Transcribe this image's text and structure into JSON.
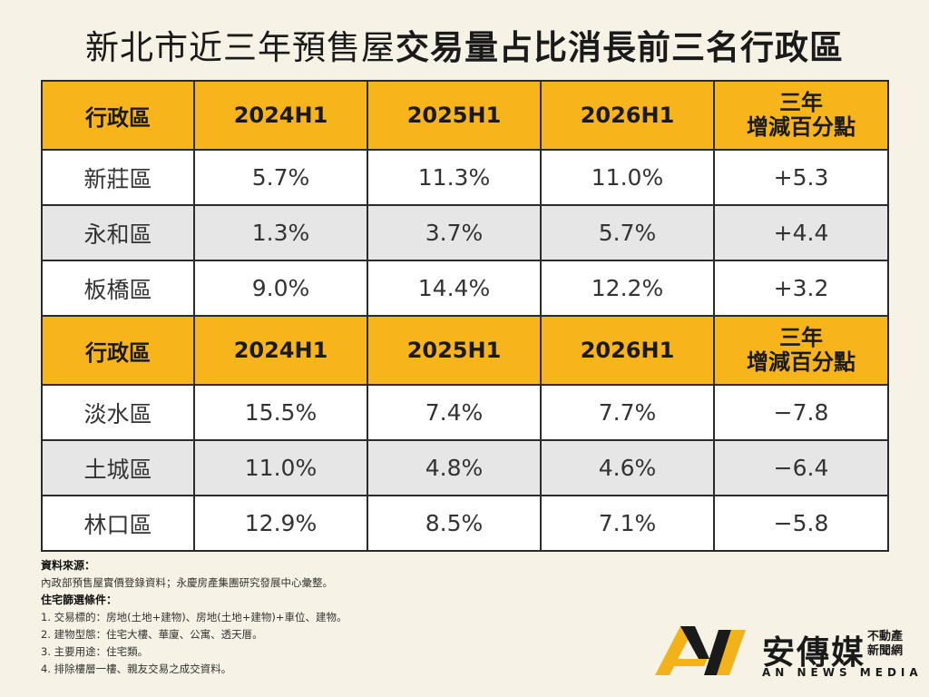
{
  "title": {
    "part1": "新北市近三年預售屋",
    "part2": "交易量占比消長前三名行政區"
  },
  "header": {
    "district": "行政區",
    "col1": "2024H1",
    "col2": "2025H1",
    "col3": "2026H1",
    "change_l1": "三年",
    "change_l2": "增減百分點"
  },
  "top_rows": [
    {
      "district": "新莊區",
      "v2024": "5.7%",
      "v2025": "11.3%",
      "v2026": "11.0%",
      "change": "+5.3"
    },
    {
      "district": "永和區",
      "v2024": "1.3%",
      "v2025": "3.7%",
      "v2026": "5.7%",
      "change": "+4.4"
    },
    {
      "district": "板橋區",
      "v2024": "9.0%",
      "v2025": "14.4%",
      "v2026": "12.2%",
      "change": "+3.2"
    }
  ],
  "bottom_rows": [
    {
      "district": "淡水區",
      "v2024": "15.5%",
      "v2025": "7.4%",
      "v2026": "7.7%",
      "change": "−7.8"
    },
    {
      "district": "土城區",
      "v2024": "11.0%",
      "v2025": "4.8%",
      "v2026": "4.6%",
      "change": "−6.4"
    },
    {
      "district": "林口區",
      "v2024": "12.9%",
      "v2025": "8.5%",
      "v2026": "7.1%",
      "change": "−5.8"
    }
  ],
  "notes": {
    "source_heading": "資料來源：",
    "source_text": "內政部預售屋實價登錄資料；永慶房產集團研究發展中心彙整。",
    "criteria_heading": "住宅篩選條件：",
    "criteria": [
      "1. 交易標的：房地(土地+建物)、房地(土地+建物)+車位、建物。",
      "2. 建物型態：住宅大樓、華廈、公寓、透天厝。",
      "3. 主要用途：住宅類。",
      "4. 排除樓層一樓、親友交易之成交資料。"
    ]
  },
  "logo": {
    "name_cn": "安傳媒",
    "sub_l1": "不動產",
    "sub_l2": "新聞網",
    "name_en": "AN NEWS MEDIA",
    "colors": {
      "gold": "#f2b21a",
      "dark": "#1a1a1a"
    }
  },
  "colors": {
    "header_bg": "#f7b51b",
    "alt_row": "#e6e6e6",
    "page_bg": "#f7f2e6"
  }
}
